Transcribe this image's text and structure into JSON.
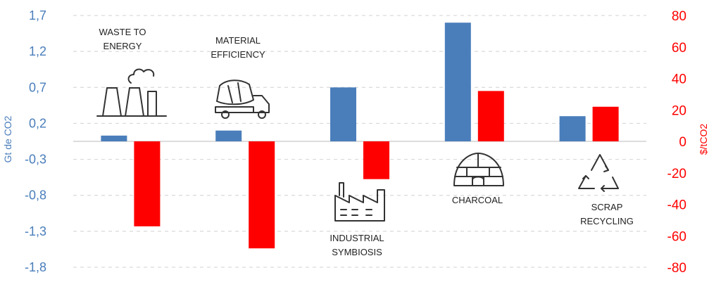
{
  "chart_data": {
    "type": "bar",
    "title": "",
    "colors": {
      "left_axis": "#4a7ebb",
      "right_axis": "#ff0000",
      "grid": "#d9d9d9"
    },
    "left_axis": {
      "label": "Gt de CO2",
      "ylim": [
        -1.8,
        1.7
      ],
      "ticks": [
        "1,7",
        "1,2",
        "0,7",
        "0,2",
        "-0,3",
        "-0,8",
        "-1,3",
        "-1,8"
      ]
    },
    "right_axis": {
      "label": "$/tCO2",
      "ylim": [
        -80,
        80
      ],
      "ticks": [
        "80",
        "60",
        "40",
        "20",
        "0",
        "-20",
        "-40",
        "-60",
        "-80"
      ]
    },
    "categories": [
      {
        "lines": [
          "WASTE TO",
          "ENERGY"
        ],
        "icon": "power-plant-icon"
      },
      {
        "lines": [
          "MATERIAL",
          "EFFICIENCY"
        ],
        "icon": "cement-truck-icon"
      },
      {
        "lines": [
          "INDUSTRIAL",
          "SYMBIOSIS"
        ],
        "icon": "factory-icon"
      },
      {
        "lines": [
          "CHARCOAL"
        ],
        "icon": "igloo-kiln-icon"
      },
      {
        "lines": [
          "SCRAP",
          "RECYCLING"
        ],
        "icon": "recycle-icon"
      }
    ],
    "series": [
      {
        "axis": "left",
        "color": "#4a7ebb",
        "values": [
          0.03,
          0.1,
          0.7,
          1.6,
          0.3
        ]
      },
      {
        "axis": "right",
        "color": "#ff0000",
        "values": [
          -54,
          -68,
          -24,
          32,
          22
        ]
      }
    ],
    "grid": true
  }
}
